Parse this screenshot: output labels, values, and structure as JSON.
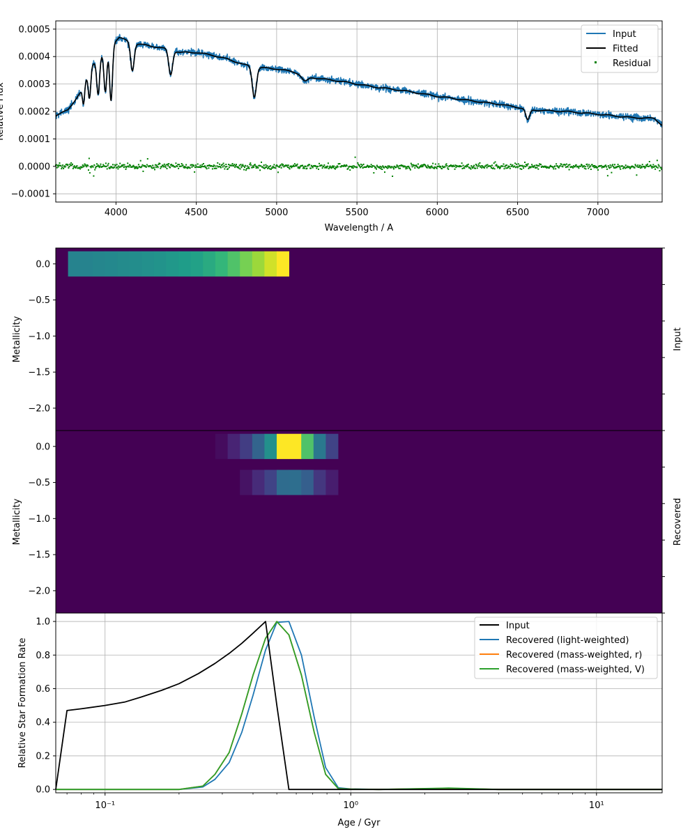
{
  "chart_data": [
    {
      "type": "line",
      "panel": "spectrum",
      "xlabel": "Wavelength / A",
      "ylabel": "Relative Flux",
      "xlim": [
        3625,
        7400
      ],
      "ylim": [
        -0.00013,
        0.00053
      ],
      "x_ticks": [
        4000,
        4500,
        5000,
        5500,
        6000,
        6500,
        7000
      ],
      "x_tick_labels": [
        "4000",
        "4500",
        "5000",
        "5500",
        "6000",
        "6500",
        "7000"
      ],
      "y_ticks": [
        -0.0001,
        0.0,
        0.0001,
        0.0002,
        0.0003,
        0.0004,
        0.0005
      ],
      "y_tick_labels": [
        "−0.0001",
        "0.0000",
        "0.0001",
        "0.0002",
        "0.0003",
        "0.0004",
        "0.0005"
      ],
      "grid": true,
      "legend": "top-right",
      "series": [
        {
          "name": "Input",
          "color": "#1f77b4",
          "kind": "line"
        },
        {
          "name": "Fitted",
          "color": "#000000",
          "kind": "line"
        },
        {
          "name": "Residual",
          "color": "#008000",
          "kind": "scatter"
        }
      ],
      "continuum": [
        [
          3625,
          0.000185
        ],
        [
          3700,
          0.000205
        ],
        [
          3780,
          0.00027
        ],
        [
          3850,
          0.00037
        ],
        [
          3950,
          0.00043
        ],
        [
          4020,
          0.00047
        ],
        [
          4100,
          0.00045
        ],
        [
          4200,
          0.00044
        ],
        [
          4300,
          0.00043
        ],
        [
          4400,
          0.000415
        ],
        [
          4500,
          0.000415
        ],
        [
          4600,
          0.000405
        ],
        [
          4700,
          0.00039
        ],
        [
          4800,
          0.00037
        ],
        [
          4900,
          0.00036
        ],
        [
          5000,
          0.000355
        ],
        [
          5100,
          0.000345
        ],
        [
          5200,
          0.000325
        ],
        [
          5400,
          0.00031
        ],
        [
          5600,
          0.00029
        ],
        [
          5800,
          0.000275
        ],
        [
          6000,
          0.000255
        ],
        [
          6200,
          0.00024
        ],
        [
          6400,
          0.000225
        ],
        [
          6500,
          0.000215
        ],
        [
          6600,
          0.000205
        ],
        [
          6800,
          0.0002
        ],
        [
          7000,
          0.00019
        ],
        [
          7200,
          0.000178
        ],
        [
          7350,
          0.000175
        ],
        [
          7400,
          0.00015
        ]
      ],
      "absorption_lines": [
        {
          "wavelength": 3798,
          "depth": 7e-05,
          "width": 7
        },
        {
          "wavelength": 3835,
          "depth": 0.0001,
          "width": 8
        },
        {
          "wavelength": 3889,
          "depth": 0.00013,
          "width": 9
        },
        {
          "wavelength": 3934,
          "depth": 0.00015,
          "width": 9
        },
        {
          "wavelength": 3969,
          "depth": 0.0002,
          "width": 9
        },
        {
          "wavelength": 4102,
          "depth": 0.0001,
          "width": 11
        },
        {
          "wavelength": 4340,
          "depth": 9e-05,
          "width": 12
        },
        {
          "wavelength": 4861,
          "depth": 0.00011,
          "width": 13
        },
        {
          "wavelength": 5175,
          "depth": 2e-05,
          "width": 18
        },
        {
          "wavelength": 6563,
          "depth": 4e-05,
          "width": 12
        }
      ],
      "residual_range": [
        -6e-05,
        5e-05
      ]
    },
    {
      "type": "heatmap",
      "panel": "input_grid",
      "side_label": "Input",
      "ylabel": "Metallicity",
      "y_ticks": [
        0.0,
        -0.5,
        -1.0,
        -1.5,
        -2.0
      ],
      "y_tick_labels": [
        "0.0",
        "−0.5",
        "−1.0",
        "−1.5",
        "−2.0"
      ],
      "age_bins_log10_gyr": [
        -1.15,
        -1.05,
        -1.0,
        -0.95,
        -0.9,
        -0.85,
        -0.8,
        -0.75,
        -0.7,
        -0.65,
        -0.6,
        -0.55,
        -0.5,
        -0.45,
        -0.4,
        -0.35,
        -0.3,
        -0.25
      ],
      "metallicity_rows": [
        {
          "metallicity": 0.0,
          "values": [
            0.45,
            0.46,
            0.47,
            0.48,
            0.49,
            0.5,
            0.51,
            0.53,
            0.55,
            0.57,
            0.61,
            0.66,
            0.72,
            0.79,
            0.85,
            0.93,
            1.0,
            0.47
          ]
        }
      ],
      "colormap": "viridis",
      "background": "#440154"
    },
    {
      "type": "heatmap",
      "panel": "recovered_grid",
      "side_label": "Recovered",
      "ylabel": "Metallicity",
      "y_ticks": [
        0.0,
        -0.5,
        -1.0,
        -1.5,
        -2.0
      ],
      "y_tick_labels": [
        "0.0",
        "−0.5",
        "−1.0",
        "−1.5",
        "−2.0"
      ],
      "age_bins_log10_gyr": [
        -0.55,
        -0.5,
        -0.45,
        -0.4,
        -0.35,
        -0.3,
        -0.25,
        -0.2,
        -0.15,
        -0.1,
        -0.05
      ],
      "metallicity_rows": [
        {
          "metallicity": 0.0,
          "values": [
            0.03,
            0.1,
            0.18,
            0.32,
            0.5,
            1.0,
            1.0,
            0.72,
            0.4,
            0.2,
            0.0
          ]
        },
        {
          "metallicity": -0.5,
          "values": [
            0.0,
            0.0,
            0.05,
            0.12,
            0.2,
            0.35,
            0.36,
            0.3,
            0.16,
            0.08,
            0.0
          ]
        }
      ],
      "colormap": "viridis",
      "background": "#440154"
    },
    {
      "type": "line",
      "panel": "sfh",
      "xlabel": "Age / Gyr",
      "ylabel": "Relative Star Formation Rate",
      "x_scale": "log",
      "xlim": [
        0.063,
        18.5
      ],
      "ylim": [
        -0.02,
        1.05
      ],
      "x_ticks": [
        0.1,
        1,
        10
      ],
      "x_tick_labels": [
        "10⁻¹",
        "10⁰",
        "10¹"
      ],
      "y_ticks": [
        0.0,
        0.2,
        0.4,
        0.6,
        0.8,
        1.0
      ],
      "y_tick_labels": [
        "0.0",
        "0.2",
        "0.4",
        "0.6",
        "0.8",
        "1.0"
      ],
      "grid": true,
      "legend": "top-right",
      "series": [
        {
          "name": "Input",
          "color": "#000000",
          "x": [
            0.063,
            0.07,
            0.08,
            0.1,
            0.12,
            0.14,
            0.17,
            0.2,
            0.24,
            0.28,
            0.32,
            0.36,
            0.4,
            0.45,
            0.5,
            0.56,
            0.8,
            1.0,
            18.5
          ],
          "y": [
            0.0,
            0.47,
            0.48,
            0.5,
            0.52,
            0.55,
            0.59,
            0.63,
            0.69,
            0.75,
            0.81,
            0.87,
            0.93,
            1.0,
            0.5,
            0.0,
            0.0,
            0.0,
            0.0
          ]
        },
        {
          "name": "Recovered (light-weighted)",
          "color": "#1f77b4",
          "x": [
            0.063,
            0.1,
            0.2,
            0.25,
            0.28,
            0.32,
            0.36,
            0.4,
            0.45,
            0.5,
            0.56,
            0.63,
            0.71,
            0.79,
            0.89,
            1.0,
            1.3,
            2.5,
            4.0,
            10.0,
            18.5
          ],
          "y": [
            0.0,
            0.0,
            0.0,
            0.015,
            0.06,
            0.16,
            0.34,
            0.56,
            0.83,
            0.995,
            1.0,
            0.8,
            0.43,
            0.13,
            0.01,
            0.003,
            0.0,
            0.005,
            0.0,
            0.0,
            0.0
          ]
        },
        {
          "name": "Recovered (mass-weighted, r)",
          "color": "#ff7f0e",
          "x": [
            0.063,
            0.1,
            0.2,
            0.25,
            0.28,
            0.32,
            0.36,
            0.4,
            0.45,
            0.5,
            0.56,
            0.63,
            0.71,
            0.79,
            0.89,
            1.0,
            1.3,
            2.5,
            4.0,
            10.0,
            18.5
          ],
          "y": [
            0.0,
            0.0,
            0.0,
            0.02,
            0.09,
            0.22,
            0.45,
            0.68,
            0.9,
            1.0,
            0.92,
            0.68,
            0.34,
            0.09,
            0.005,
            0.002,
            0.0,
            0.007,
            0.0,
            0.0,
            0.0
          ]
        },
        {
          "name": "Recovered (mass-weighted, V)",
          "color": "#2ca02c",
          "x": [
            0.063,
            0.1,
            0.2,
            0.25,
            0.28,
            0.32,
            0.36,
            0.4,
            0.45,
            0.5,
            0.56,
            0.63,
            0.71,
            0.79,
            0.89,
            1.0,
            1.3,
            2.5,
            4.0,
            10.0,
            18.5
          ],
          "y": [
            0.0,
            0.0,
            0.0,
            0.02,
            0.09,
            0.22,
            0.45,
            0.68,
            0.9,
            1.0,
            0.92,
            0.68,
            0.34,
            0.09,
            0.005,
            0.002,
            0.0,
            0.008,
            0.0,
            0.0,
            0.0
          ]
        }
      ]
    }
  ]
}
